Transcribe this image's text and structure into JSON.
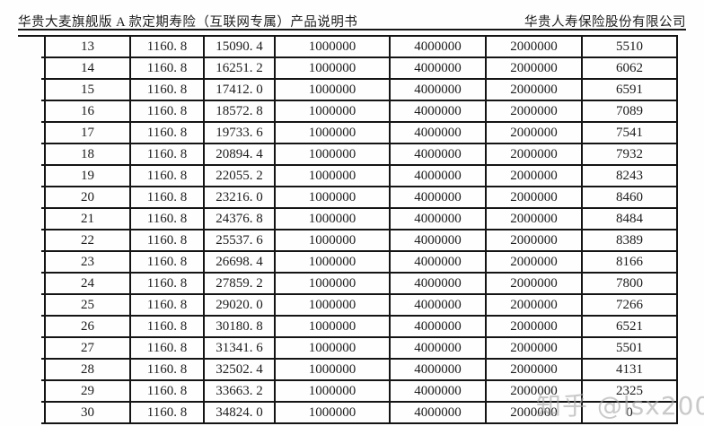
{
  "header": {
    "left_title": "华贵大麦旗舰版 A 款定期寿险（互联网专属）产品说明书",
    "right_title": "华贵人寿保险股份有限公司"
  },
  "table": {
    "rows": [
      [
        "13",
        "1160. 8",
        "15090. 4",
        "1000000",
        "4000000",
        "2000000",
        "5510"
      ],
      [
        "14",
        "1160. 8",
        "16251. 2",
        "1000000",
        "4000000",
        "2000000",
        "6062"
      ],
      [
        "15",
        "1160. 8",
        "17412. 0",
        "1000000",
        "4000000",
        "2000000",
        "6591"
      ],
      [
        "16",
        "1160. 8",
        "18572. 8",
        "1000000",
        "4000000",
        "2000000",
        "7089"
      ],
      [
        "17",
        "1160. 8",
        "19733. 6",
        "1000000",
        "4000000",
        "2000000",
        "7541"
      ],
      [
        "18",
        "1160. 8",
        "20894. 4",
        "1000000",
        "4000000",
        "2000000",
        "7932"
      ],
      [
        "19",
        "1160. 8",
        "22055. 2",
        "1000000",
        "4000000",
        "2000000",
        "8243"
      ],
      [
        "20",
        "1160. 8",
        "23216. 0",
        "1000000",
        "4000000",
        "2000000",
        "8460"
      ],
      [
        "21",
        "1160. 8",
        "24376. 8",
        "1000000",
        "4000000",
        "2000000",
        "8484"
      ],
      [
        "22",
        "1160. 8",
        "25537. 6",
        "1000000",
        "4000000",
        "2000000",
        "8389"
      ],
      [
        "23",
        "1160. 8",
        "26698. 4",
        "1000000",
        "4000000",
        "2000000",
        "8166"
      ],
      [
        "24",
        "1160. 8",
        "27859. 2",
        "1000000",
        "4000000",
        "2000000",
        "7800"
      ],
      [
        "25",
        "1160. 8",
        "29020. 0",
        "1000000",
        "4000000",
        "2000000",
        "7266"
      ],
      [
        "26",
        "1160. 8",
        "30180. 8",
        "1000000",
        "4000000",
        "2000000",
        "6521"
      ],
      [
        "27",
        "1160. 8",
        "31341. 6",
        "1000000",
        "4000000",
        "2000000",
        "5501"
      ],
      [
        "28",
        "1160. 8",
        "32502. 4",
        "1000000",
        "4000000",
        "2000000",
        "4131"
      ],
      [
        "29",
        "1160. 8",
        "33663. 2",
        "1000000",
        "4000000",
        "2000000",
        "2325"
      ],
      [
        "30",
        "1160. 8",
        "34824. 0",
        "1000000",
        "4000000",
        "2000000",
        "0"
      ]
    ]
  },
  "watermark": {
    "text": "知乎 @lsx2008"
  },
  "colors": {
    "border": "#141414",
    "text": "#1c1c1c",
    "background": "#fefefe",
    "watermark": "#a8a8a8"
  }
}
